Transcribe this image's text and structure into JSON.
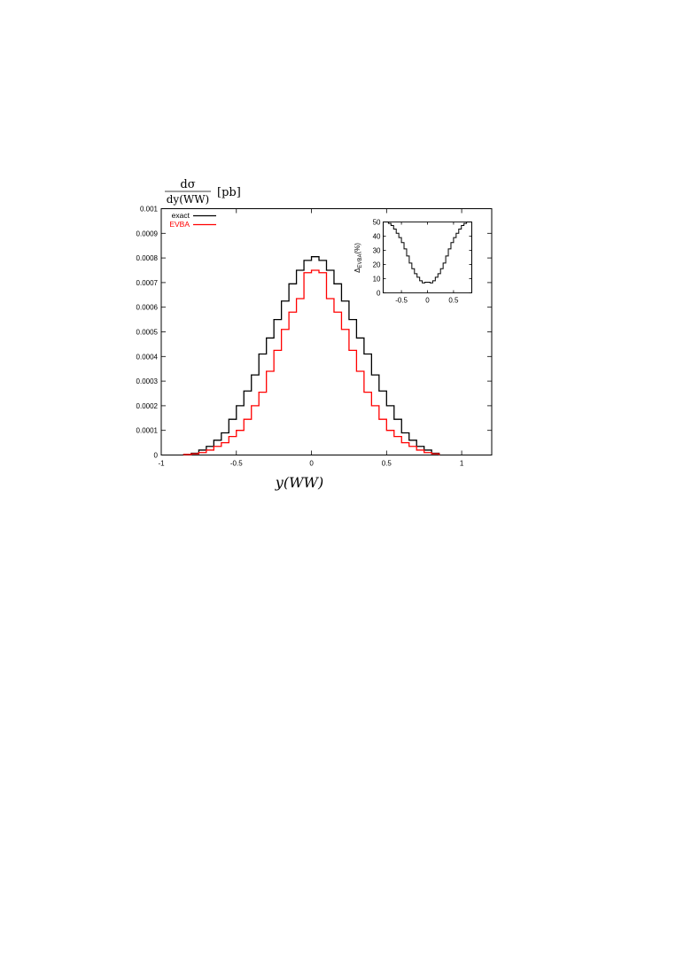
{
  "chart_data": [
    {
      "type": "line",
      "step": true,
      "ylabel": {
        "numerator": "dσ",
        "denominator": "dy(WW)",
        "unit": "[pb]"
      },
      "xlabel": "y(WW)",
      "xlim": [
        -1,
        1.2
      ],
      "ylim": [
        0,
        0.001
      ],
      "xticks": [
        "-1",
        "-0.5",
        "0",
        "0.5",
        "1"
      ],
      "yticks": [
        "0",
        "0.0001",
        "0.0002",
        "0.0003",
        "0.0004",
        "0.0005",
        "0.0006",
        "0.0007",
        "0.0008",
        "0.0009",
        "0.001"
      ],
      "legend": {
        "position": "top-left"
      },
      "bin_edges": [
        -0.85,
        -0.8,
        -0.75,
        -0.7,
        -0.65,
        -0.6,
        -0.55,
        -0.5,
        -0.45,
        -0.4,
        -0.35,
        -0.3,
        -0.25,
        -0.2,
        -0.15,
        -0.1,
        -0.05,
        0,
        0.05,
        0.1,
        0.15,
        0.2,
        0.25,
        0.3,
        0.35,
        0.4,
        0.45,
        0.5,
        0.55,
        0.6,
        0.65,
        0.7,
        0.75,
        0.8,
        0.85
      ],
      "series": [
        {
          "name": "exact",
          "color": "#000000",
          "values": [
            2e-06,
            7e-06,
            2e-05,
            3.5e-05,
            6e-05,
            9e-05,
            0.000145,
            0.0002,
            0.00026,
            0.000325,
            0.00041,
            0.000475,
            0.00055,
            0.000625,
            0.000695,
            0.00075,
            0.00079,
            0.000805,
            0.00079,
            0.00075,
            0.000695,
            0.000625,
            0.00055,
            0.000475,
            0.00041,
            0.000325,
            0.00026,
            0.0002,
            0.000145,
            9e-05,
            6e-05,
            3.5e-05,
            2e-05,
            7e-06
          ]
        },
        {
          "name": "EVBA",
          "color": "#ff0000",
          "values": [
            2e-06,
            5e-06,
            1e-05,
            2e-05,
            3.5e-05,
            5e-05,
            7.5e-05,
            0.0001,
            0.000145,
            0.0002,
            0.000255,
            0.00034,
            0.000425,
            0.00051,
            0.00058,
            0.000635,
            0.00074,
            0.00075,
            0.00074,
            0.000635,
            0.00058,
            0.00051,
            0.000425,
            0.00034,
            0.000255,
            0.0002,
            0.000145,
            0.0001,
            7.5e-05,
            5e-05,
            3.5e-05,
            2e-05,
            1e-05,
            5e-06
          ]
        }
      ]
    },
    {
      "type": "line",
      "step": true,
      "inset": true,
      "ylabel": "Δ_EVBA(%)",
      "ylabel_parts": {
        "symbol": "Δ",
        "sub": "EVBA",
        "unit": "(%)"
      },
      "xlim": [
        -0.85,
        0.85
      ],
      "ylim": [
        0,
        50
      ],
      "xticks": [
        "-0.5",
        "0",
        "0.5"
      ],
      "yticks": [
        "0",
        "10",
        "20",
        "30",
        "40",
        "50"
      ],
      "bin_edges": [
        -0.85,
        -0.8,
        -0.75,
        -0.7,
        -0.65,
        -0.6,
        -0.55,
        -0.5,
        -0.45,
        -0.4,
        -0.35,
        -0.3,
        -0.25,
        -0.2,
        -0.15,
        -0.1,
        -0.05,
        0,
        0.05,
        0.1,
        0.15,
        0.2,
        0.25,
        0.3,
        0.35,
        0.4,
        0.45,
        0.5,
        0.55,
        0.6,
        0.65,
        0.7,
        0.75,
        0.8,
        0.85
      ],
      "series": [
        {
          "color": "#000000",
          "values": [
            50,
            50,
            49,
            47.5,
            45,
            42,
            39,
            35.5,
            31,
            26,
            21,
            17,
            13.5,
            11,
            8.5,
            7,
            7.5,
            7.5,
            7,
            8.5,
            11,
            13.5,
            17,
            21,
            26,
            31,
            35.5,
            39,
            42,
            45,
            47.5,
            49,
            50,
            50
          ]
        }
      ]
    }
  ]
}
